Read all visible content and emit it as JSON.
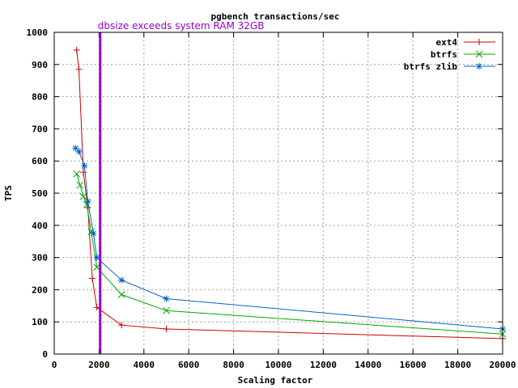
{
  "chart_data": {
    "type": "line",
    "title": "pgbench transactions/sec",
    "xlabel": "Scaling factor",
    "ylabel": "TPS",
    "xlim": [
      0,
      20000
    ],
    "ylim": [
      0,
      1000
    ],
    "xticks": [
      0,
      2000,
      4000,
      6000,
      8000,
      10000,
      12000,
      14000,
      16000,
      18000,
      20000
    ],
    "yticks": [
      0,
      100,
      200,
      300,
      400,
      500,
      600,
      700,
      800,
      900,
      1000
    ],
    "grid": true,
    "legend_position": "top-right",
    "series": [
      {
        "name": "ext4",
        "color": "#cc0000",
        "marker": "plus",
        "x": [
          1000,
          1100,
          1300,
          1500,
          1700,
          1900,
          3000,
          5000,
          20000
        ],
        "y": [
          945,
          885,
          565,
          455,
          235,
          145,
          90,
          78,
          48
        ]
      },
      {
        "name": "btrfs",
        "color": "#00aa00",
        "marker": "cross",
        "x": [
          1000,
          1150,
          1300,
          1450,
          1650,
          1900,
          3000,
          5000,
          20000
        ],
        "y": [
          560,
          525,
          490,
          465,
          380,
          270,
          185,
          135,
          62
        ]
      },
      {
        "name": "btrfs zlib",
        "color": "#0066cc",
        "marker": "star",
        "x": [
          950,
          1100,
          1350,
          1500,
          1750,
          1900,
          3000,
          5000,
          20000
        ],
        "y": [
          640,
          630,
          585,
          475,
          375,
          300,
          230,
          172,
          78
        ]
      }
    ],
    "annotations": [
      {
        "type": "vline",
        "x": 2050,
        "color": "#9900cc",
        "label": "dbsize exceeds system RAM 32GB"
      }
    ]
  }
}
